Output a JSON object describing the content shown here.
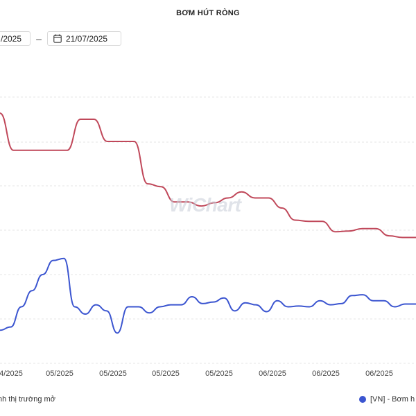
{
  "title": "BƠM HÚT RÒNG",
  "date_range": {
    "from_text": "/2025",
    "separator": "–",
    "to_text": "21/07/2025"
  },
  "watermark": "WiChart",
  "legend": {
    "left_text": "nh thị trường mở",
    "right_text": "[VN] - Bơm h",
    "right_color": "#3b55d0"
  },
  "colors": {
    "red_series": "#c0485a",
    "blue_series": "#3b55d0",
    "grid": "#e6e6e6"
  },
  "chart_data": {
    "type": "line",
    "x_tick_labels": [
      "4/2025",
      "05/2025",
      "05/2025",
      "05/2025",
      "05/2025",
      "06/2025",
      "06/2025",
      "06/2025"
    ],
    "series": [
      {
        "color": "#c0485a",
        "values": [
          -80,
          -172,
          -172,
          -172,
          -172,
          -172,
          -95,
          -95,
          -150,
          -150,
          -150,
          -255,
          -262,
          -300,
          -300,
          -310,
          -302,
          -290,
          -275,
          -290,
          -290,
          -315,
          -345,
          -348,
          -348,
          -374,
          -372,
          -366,
          -366,
          -384,
          -388,
          -388
        ]
      },
      {
        "color": "#3b55d0",
        "values": [
          -618,
          -610,
          -560,
          -520,
          -480,
          -445,
          -440,
          -560,
          -578,
          -555,
          -570,
          -625,
          -560,
          -560,
          -575,
          -560,
          -555,
          -555,
          -535,
          -552,
          -548,
          -538,
          -570,
          -550,
          -555,
          -572,
          -545,
          -560,
          -558,
          -560,
          -545,
          -555,
          -552,
          -532,
          -530,
          -545,
          -545,
          -560,
          -553,
          -553
        ]
      }
    ],
    "grid": true
  }
}
